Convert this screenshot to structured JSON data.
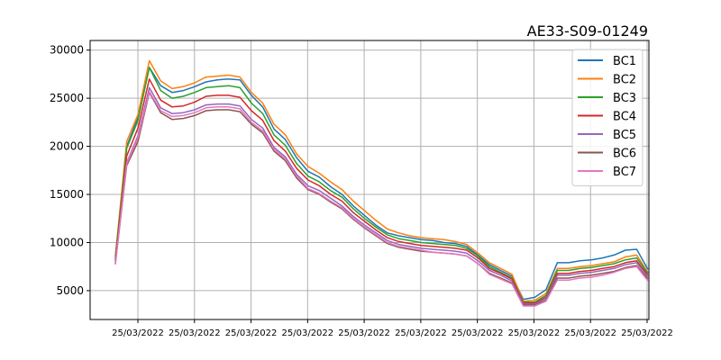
{
  "chart_data": {
    "type": "line",
    "title": "AE33-S09-01249",
    "xlabel": "",
    "ylabel": "",
    "ylim": [
      2000,
      31000
    ],
    "yticks": [
      5000,
      10000,
      15000,
      20000,
      25000,
      30000
    ],
    "xtick_labels": [
      "25/03/2022",
      "25/03/2022",
      "25/03/2022",
      "25/03/2022",
      "25/03/2022",
      "25/03/2022",
      "25/03/2022",
      "25/03/2022",
      "25/03/2022",
      "25/03/2022"
    ],
    "grid": true,
    "legend_position": "top-right",
    "series": [
      {
        "name": "BC1",
        "color": "#1f77b4",
        "values": [
          8200,
          20000,
          23000,
          28200,
          26300,
          25600,
          25800,
          26200,
          26700,
          26900,
          27000,
          26900,
          25300,
          24100,
          21800,
          20700,
          18800,
          17400,
          16800,
          15800,
          15000,
          13800,
          12800,
          11800,
          11000,
          10700,
          10500,
          10300,
          10200,
          10000,
          9900,
          9600,
          8700,
          7700,
          7100,
          6500,
          4100,
          4300,
          5100,
          7900,
          7900,
          8100,
          8200,
          8400,
          8700,
          9200,
          9300,
          7200
        ]
      },
      {
        "name": "BC2",
        "color": "#ff7f0e",
        "values": [
          8600,
          20500,
          23300,
          28900,
          26800,
          26000,
          26200,
          26600,
          27200,
          27300,
          27400,
          27200,
          25600,
          24500,
          22300,
          21200,
          19200,
          17900,
          17200,
          16300,
          15500,
          14300,
          13300,
          12300,
          11400,
          11000,
          10700,
          10500,
          10400,
          10300,
          10100,
          9800,
          8900,
          7900,
          7300,
          6700,
          3900,
          4000,
          4700,
          7300,
          7300,
          7500,
          7600,
          7800,
          8000,
          8500,
          8700,
          6900
        ]
      },
      {
        "name": "BC3",
        "color": "#2ca02c",
        "values": [
          8400,
          19800,
          22700,
          28200,
          25800,
          25000,
          25200,
          25600,
          26100,
          26200,
          26300,
          26100,
          24500,
          23400,
          21200,
          20100,
          18200,
          16900,
          16300,
          15400,
          14700,
          13500,
          12500,
          11600,
          10800,
          10400,
          10200,
          10000,
          9900,
          9800,
          9700,
          9400,
          8600,
          7500,
          6900,
          6300,
          3800,
          3800,
          4500,
          7100,
          7100,
          7300,
          7400,
          7600,
          7800,
          8200,
          8400,
          6800
        ]
      },
      {
        "name": "BC4",
        "color": "#d62728",
        "values": [
          8100,
          19000,
          21900,
          27000,
          24800,
          24100,
          24200,
          24600,
          25200,
          25300,
          25300,
          25100,
          23700,
          22700,
          20600,
          19500,
          17700,
          16500,
          15900,
          15000,
          14300,
          13100,
          12200,
          11300,
          10500,
          10100,
          9900,
          9700,
          9600,
          9500,
          9400,
          9200,
          8400,
          7300,
          6800,
          6200,
          3700,
          3700,
          4300,
          6800,
          6800,
          7000,
          7100,
          7300,
          7500,
          7900,
          8100,
          6600
        ]
      },
      {
        "name": "BC5",
        "color": "#9467bd",
        "values": [
          7900,
          18300,
          21100,
          26100,
          24000,
          23400,
          23500,
          23800,
          24300,
          24400,
          24400,
          24200,
          22800,
          21900,
          19900,
          18900,
          17100,
          15900,
          15400,
          14600,
          13800,
          12700,
          11800,
          11000,
          10200,
          9800,
          9600,
          9400,
          9300,
          9200,
          9100,
          8900,
          8100,
          7100,
          6600,
          6000,
          3600,
          3600,
          4200,
          6600,
          6600,
          6800,
          6900,
          7100,
          7300,
          7700,
          7900,
          6400
        ]
      },
      {
        "name": "BC6",
        "color": "#8c564b",
        "values": [
          7800,
          18000,
          20500,
          25600,
          23500,
          22800,
          22900,
          23200,
          23700,
          23800,
          23800,
          23600,
          22300,
          21400,
          19500,
          18500,
          16700,
          15500,
          15000,
          14200,
          13500,
          12400,
          11500,
          10700,
          9900,
          9500,
          9300,
          9100,
          9000,
          8900,
          8800,
          8600,
          7800,
          6800,
          6300,
          5800,
          3500,
          3500,
          4000,
          6300,
          6300,
          6500,
          6600,
          6800,
          7000,
          7400,
          7600,
          6200
        ]
      },
      {
        "name": "BC7",
        "color": "#e377c2",
        "values": [
          7700,
          18200,
          20900,
          25700,
          23700,
          23100,
          23200,
          23500,
          24000,
          24100,
          24100,
          23900,
          22500,
          21600,
          19700,
          18700,
          16900,
          15600,
          15100,
          14300,
          13600,
          12500,
          11600,
          10800,
          10000,
          9600,
          9400,
          9200,
          9000,
          8900,
          8800,
          8600,
          7800,
          6700,
          6200,
          5700,
          3400,
          3400,
          3900,
          6100,
          6100,
          6300,
          6400,
          6600,
          6900,
          7300,
          7500,
          6000
        ]
      }
    ]
  }
}
